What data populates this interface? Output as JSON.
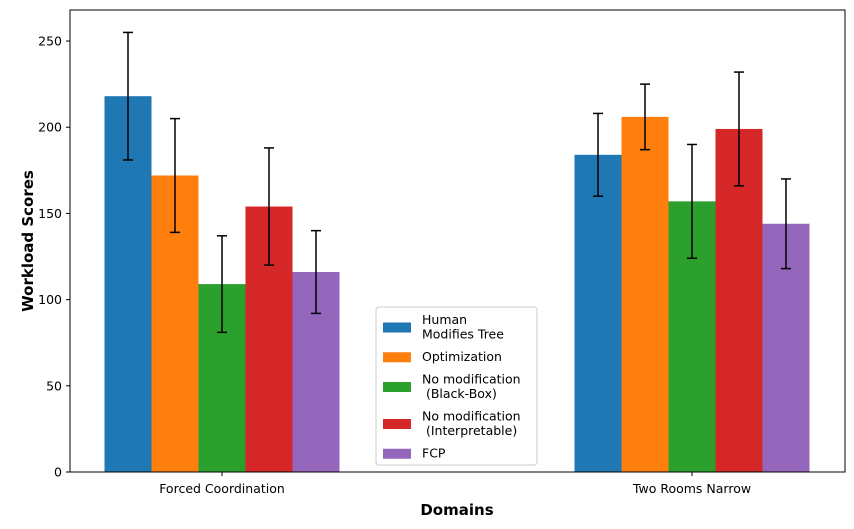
{
  "chart_data": {
    "type": "bar",
    "title": "",
    "xlabel": "Domains",
    "ylabel": "Workload Scores",
    "categories": [
      "Forced Coordination",
      "Two Rooms Narrow"
    ],
    "ylim": [
      0,
      268
    ],
    "yticks": [
      0,
      50,
      100,
      150,
      200,
      250
    ],
    "grid": false,
    "legend_position": "bottom-center",
    "series": [
      {
        "name": "Human\nModifies Tree",
        "color": "#1f77b4",
        "values": [
          218,
          184
        ],
        "errors": [
          37,
          24
        ]
      },
      {
        "name": "Optimization",
        "color": "#ff7f0e",
        "values": [
          172,
          206
        ],
        "errors": [
          33,
          19
        ]
      },
      {
        "name": "No modification\n (Black-Box)",
        "color": "#2ca02c",
        "values": [
          109,
          157
        ],
        "errors": [
          28,
          33
        ]
      },
      {
        "name": "No modification\n (Interpretable)",
        "color": "#d62728",
        "values": [
          154,
          199
        ],
        "errors": [
          34,
          33
        ]
      },
      {
        "name": "FCP",
        "color": "#9467bd",
        "values": [
          116,
          144
        ],
        "errors": [
          24,
          26
        ]
      }
    ]
  }
}
